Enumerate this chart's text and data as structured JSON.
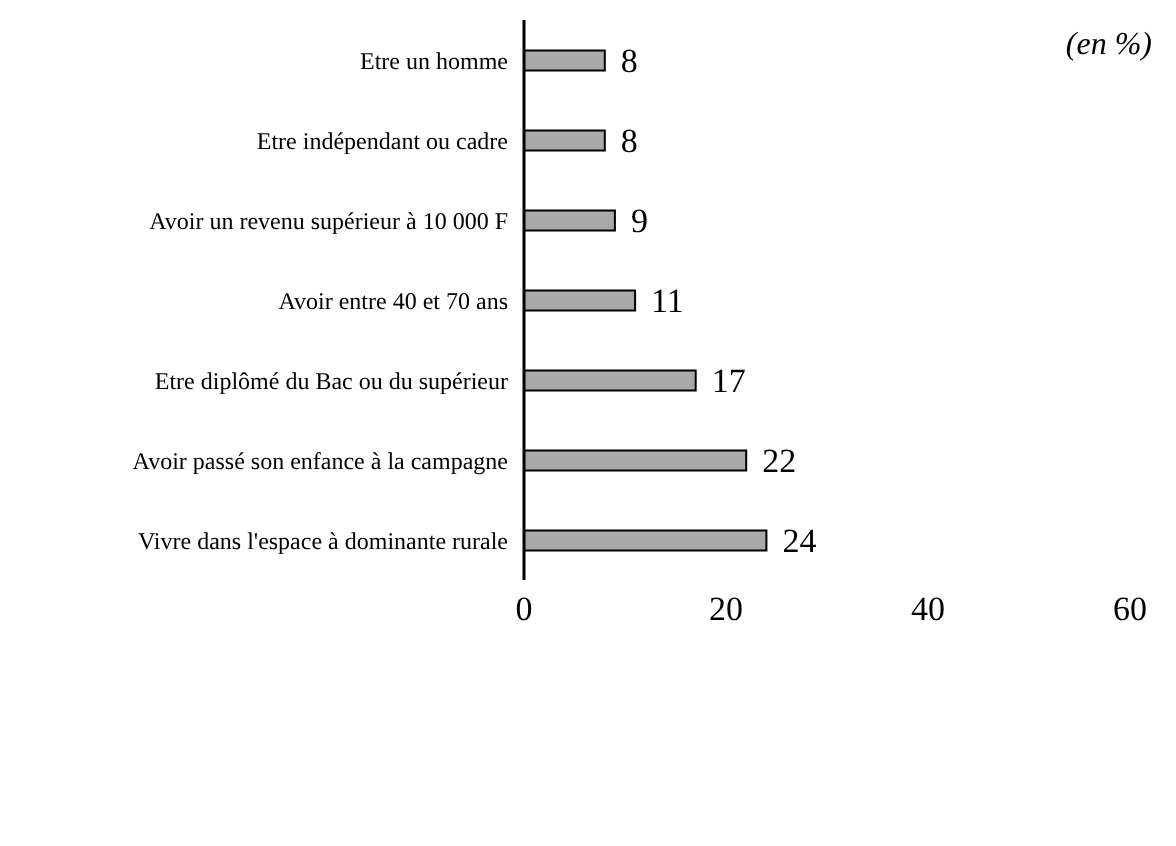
{
  "chart_data": {
    "type": "bar",
    "orientation": "horizontal",
    "categories": [
      "Etre un homme",
      "Etre indépendant ou cadre",
      "Avoir un revenu supérieur à 10 000 F",
      "Avoir entre 40 et 70 ans",
      "Etre diplômé du Bac ou du supérieur",
      "Avoir passé son enfance à la campagne",
      "Vivre dans l'espace à dominante rurale"
    ],
    "values": [
      8,
      8,
      9,
      11,
      17,
      22,
      24
    ],
    "color": "#a9a9a9",
    "xlim": [
      0,
      60
    ],
    "xticks": [
      0,
      20,
      40,
      60
    ],
    "data_labels": true,
    "grid": false,
    "annotations": [
      "(en %)"
    ]
  }
}
